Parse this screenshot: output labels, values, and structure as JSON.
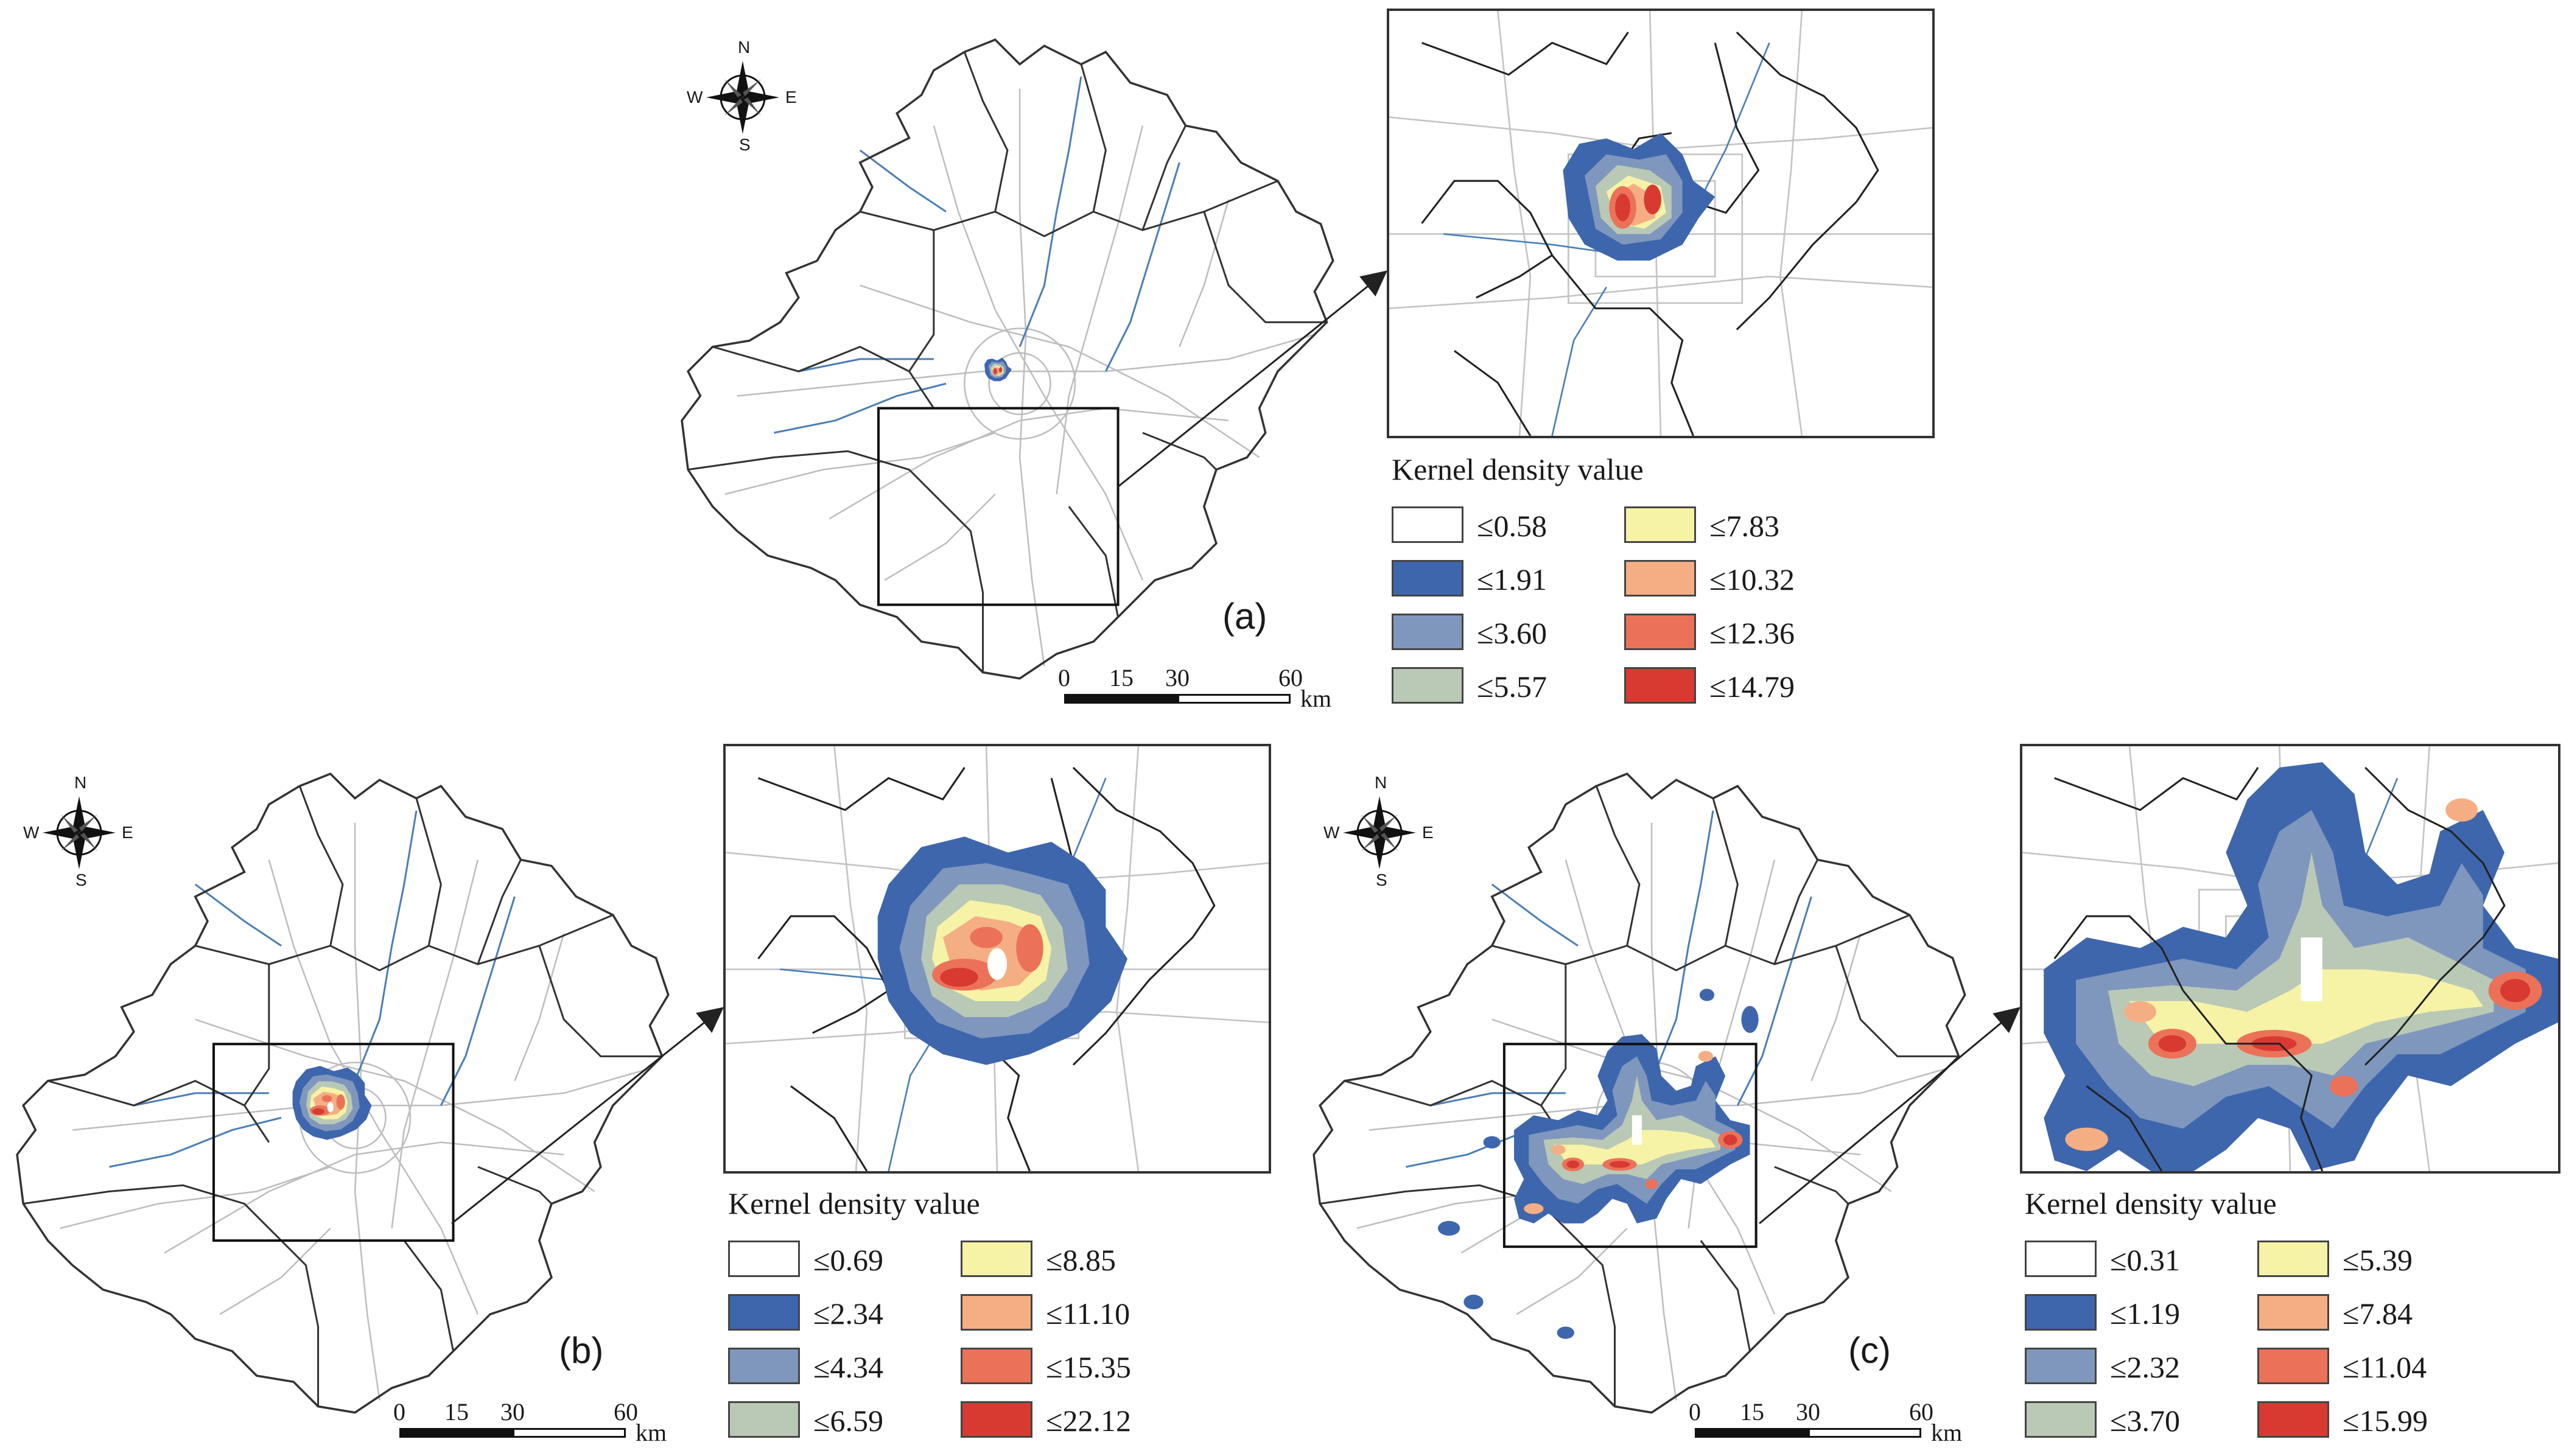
{
  "panels": [
    {
      "id": "a",
      "label": "(a)",
      "legend": {
        "title": "Kernel density value",
        "items": [
          {
            "label": "≤0.58",
            "color": "#ffffff"
          },
          {
            "label": "≤1.91",
            "color": "#3e66ad"
          },
          {
            "label": "≤3.60",
            "color": "#7f97bd"
          },
          {
            "label": "≤5.57",
            "color": "#b9c9b6"
          },
          {
            "label": "≤7.83",
            "color": "#f7f3a6"
          },
          {
            "label": "≤10.32",
            "color": "#f5ae84"
          },
          {
            "label": "≤12.36",
            "color": "#eb7259"
          },
          {
            "label": "≤14.79",
            "color": "#d83a32"
          }
        ]
      },
      "scale": {
        "ticks": [
          "0",
          "15",
          "30",
          "60"
        ],
        "unit": "km"
      },
      "compass": {
        "n": "N",
        "s": "S",
        "e": "E",
        "w": "W"
      }
    },
    {
      "id": "b",
      "label": "(b)",
      "legend": {
        "title": "Kernel density value",
        "items": [
          {
            "label": "≤0.69",
            "color": "#ffffff"
          },
          {
            "label": "≤2.34",
            "color": "#3e66ad"
          },
          {
            "label": "≤4.34",
            "color": "#7f97bd"
          },
          {
            "label": "≤6.59",
            "color": "#b9c9b6"
          },
          {
            "label": "≤8.85",
            "color": "#f7f3a6"
          },
          {
            "label": "≤11.10",
            "color": "#f5ae84"
          },
          {
            "label": "≤15.35",
            "color": "#eb7259"
          },
          {
            "label": "≤22.12",
            "color": "#d83a32"
          }
        ]
      },
      "scale": {
        "ticks": [
          "0",
          "15",
          "30",
          "60"
        ],
        "unit": "km"
      },
      "compass": {
        "n": "N",
        "s": "S",
        "e": "E",
        "w": "W"
      }
    },
    {
      "id": "c",
      "label": "(c)",
      "legend": {
        "title": "Kernel density value",
        "items": [
          {
            "label": "≤0.31",
            "color": "#ffffff"
          },
          {
            "label": "≤1.19",
            "color": "#3e66ad"
          },
          {
            "label": "≤2.32",
            "color": "#7f97bd"
          },
          {
            "label": "≤3.70",
            "color": "#b9c9b6"
          },
          {
            "label": "≤5.39",
            "color": "#f7f3a6"
          },
          {
            "label": "≤7.84",
            "color": "#f5ae84"
          },
          {
            "label": "≤11.04",
            "color": "#eb7259"
          },
          {
            "label": "≤15.99",
            "color": "#d83a32"
          }
        ]
      },
      "scale": {
        "ticks": [
          "0",
          "15",
          "30",
          "60"
        ],
        "unit": "km"
      },
      "compass": {
        "n": "N",
        "s": "S",
        "e": "E",
        "w": "W"
      }
    }
  ]
}
